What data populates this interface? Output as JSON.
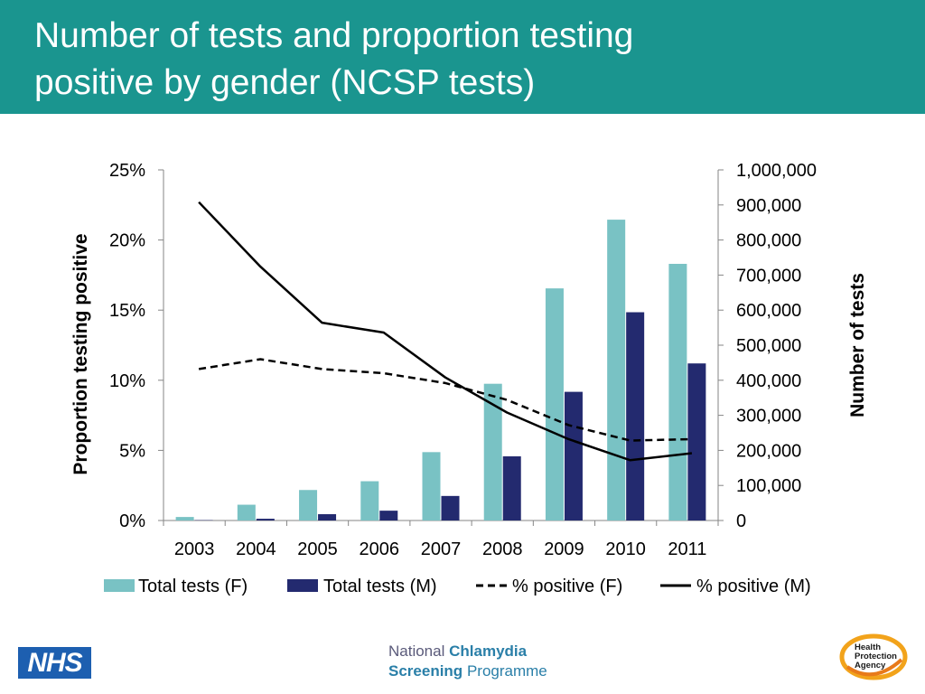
{
  "slide": {
    "title_line1": "Number of tests and proportion testing",
    "title_line2": "positive by gender (NCSP tests)"
  },
  "colors": {
    "header": "#1a958f",
    "bar_f": "#79c2c4",
    "bar_m": "#232a6f",
    "line": "#000000"
  },
  "chart_data": {
    "type": "bar",
    "categories": [
      "2003",
      "2004",
      "2005",
      "2006",
      "2007",
      "2008",
      "2009",
      "2010",
      "2011"
    ],
    "ylabel": "Proportion testing positive",
    "y2label": "Number of tests",
    "ylim": [
      0,
      0.25
    ],
    "y2lim": [
      0,
      1000000
    ],
    "y_ticks": [
      "0%",
      "5%",
      "10%",
      "15%",
      "20%",
      "25%"
    ],
    "y2_ticks": [
      "0",
      "100,000",
      "200,000",
      "300,000",
      "400,000",
      "500,000",
      "600,000",
      "700,000",
      "800,000",
      "900,000",
      "1,000,000"
    ],
    "grid": false,
    "legend_position": "bottom",
    "series": [
      {
        "name": "Total tests (F)",
        "kind": "bar",
        "axis": "right",
        "values": [
          10000,
          45000,
          87000,
          112000,
          195000,
          390000,
          662000,
          858000,
          732000
        ]
      },
      {
        "name": "Total tests (M)",
        "kind": "bar",
        "axis": "right",
        "values": [
          1000,
          5000,
          18000,
          28000,
          70000,
          183000,
          367000,
          594000,
          448000
        ]
      },
      {
        "name": "% positive (F)",
        "kind": "line",
        "style": "dashed",
        "axis": "left",
        "values": [
          0.108,
          0.115,
          0.108,
          0.105,
          0.098,
          0.086,
          0.068,
          0.057,
          0.058
        ]
      },
      {
        "name": "% positive (M)",
        "kind": "line",
        "style": "solid",
        "axis": "left",
        "values": [
          0.227,
          0.181,
          0.141,
          0.134,
          0.102,
          0.077,
          0.058,
          0.043,
          0.048
        ]
      }
    ]
  },
  "footer": {
    "nhs": "NHS",
    "ncsp_national": "National",
    "ncsp_chlamydia": "Chlamydia",
    "ncsp_screening": "Screening",
    "ncsp_programme": "Programme",
    "hpa_line1": "Health",
    "hpa_line2": "Protection",
    "hpa_line3": "Agency"
  }
}
